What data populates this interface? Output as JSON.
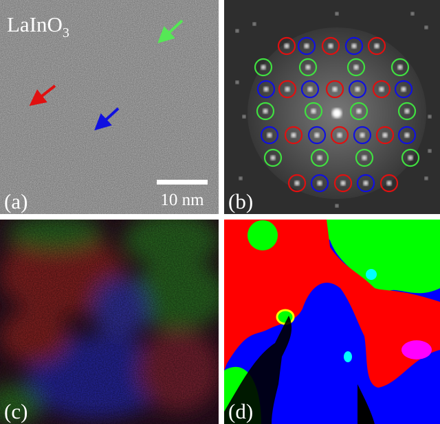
{
  "panels": [
    {
      "label": "(a)",
      "title": {
        "text": "LaInO",
        "subscript": "3"
      },
      "scale_bar": "10 nm"
    },
    {
      "label": "(b)"
    },
    {
      "label": "(c)"
    },
    {
      "label": "(d)"
    }
  ]
}
